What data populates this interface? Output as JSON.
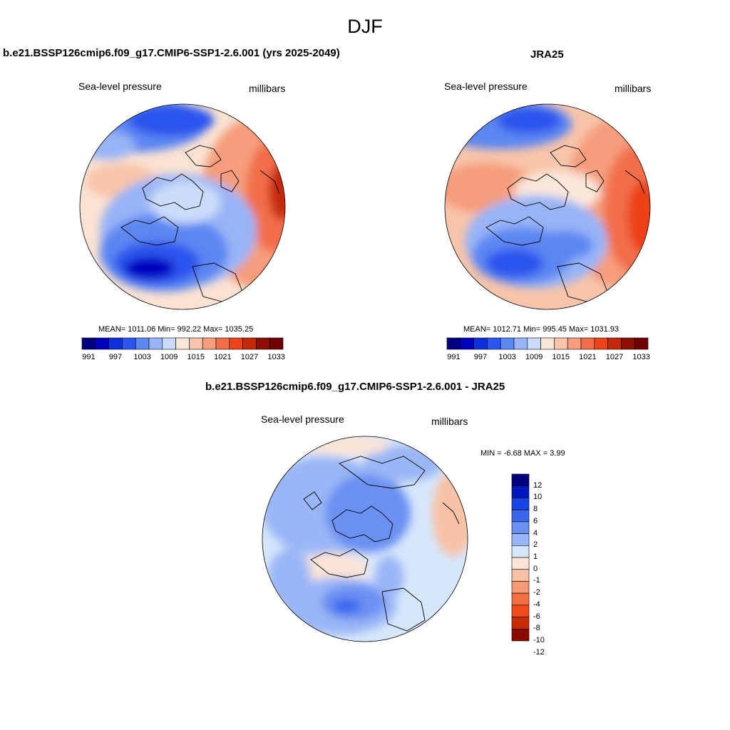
{
  "figure": {
    "title": "DJF"
  },
  "panels": [
    {
      "title": "b.e21.BSSP126cmip6.f09_g17.CMIP6-SSP1-2.6.001 (yrs 2025-2049)",
      "variable": "Sea-level pressure",
      "units": "millibars",
      "stats": "MEAN= 1011.06  Min= 992.22  Max= 1035.25"
    },
    {
      "title": "JRA25",
      "variable": "Sea-level pressure",
      "units": "millibars",
      "stats": "MEAN= 1012.71  Min= 995.45  Max= 1031.93"
    },
    {
      "title": "b.e21.BSSP126cmip6.f09_g17.CMIP6-SSP1-2.6.001 - JRA25",
      "variable": "Sea-level pressure",
      "units": "millibars",
      "stats": "MIN =  -6.68 MAX =   3.99"
    }
  ],
  "colorbar_abs": {
    "colors": [
      "#000080",
      "#0000c0",
      "#1030e0",
      "#2a55ee",
      "#5c86f2",
      "#98b4f6",
      "#cadcfa",
      "#fbe6da",
      "#f8c4aa",
      "#f59d7c",
      "#f26e48",
      "#ec4318",
      "#c42a08",
      "#8e1003",
      "#700000"
    ],
    "labels": [
      "991",
      "997",
      "1003",
      "1009",
      "1015",
      "1021",
      "1027",
      "1033"
    ]
  },
  "colorbar_diff": {
    "colors": [
      "#000080",
      "#0018c0",
      "#1844e8",
      "#3a66f0",
      "#6a90f2",
      "#9ab6f6",
      "#d6e6fb",
      "#fbe4d6",
      "#f8c2a6",
      "#f59a74",
      "#f27040",
      "#f04a18",
      "#c82c06",
      "#8a0a00"
    ],
    "labels": [
      "12",
      "10",
      "8",
      "6",
      "4",
      "2",
      "1",
      "0",
      "-1",
      "-2",
      "-4",
      "-6",
      "-8",
      "-10",
      "-12"
    ]
  }
}
